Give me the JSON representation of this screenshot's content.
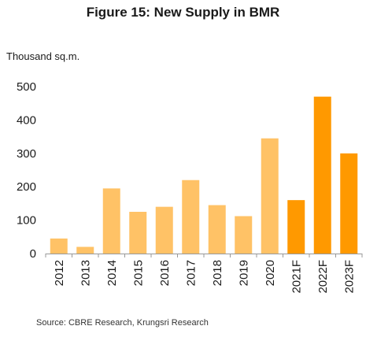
{
  "title": "Figure 15: New Supply in BMR",
  "source": "Source: CBRE Research, Krungsri Research",
  "colors": {
    "actual": "#FFC266",
    "forecast": "#FF9900",
    "axis": "#999999"
  },
  "chart_data": {
    "type": "bar",
    "title": "Figure 15: New Supply in BMR",
    "xlabel": "",
    "ylabel": "Thousand sq.m.",
    "ylim": [
      0,
      500
    ],
    "yticks": [
      0,
      100,
      200,
      300,
      400,
      500
    ],
    "grid": false,
    "categories": [
      "2012",
      "2013",
      "2014",
      "2015",
      "2016",
      "2017",
      "2018",
      "2019",
      "2020",
      "2021F",
      "2022F",
      "2023F"
    ],
    "values": [
      45,
      20,
      195,
      125,
      140,
      220,
      145,
      112,
      345,
      160,
      470,
      300
    ],
    "forecast": [
      false,
      false,
      false,
      false,
      false,
      false,
      false,
      false,
      false,
      true,
      true,
      true
    ]
  }
}
